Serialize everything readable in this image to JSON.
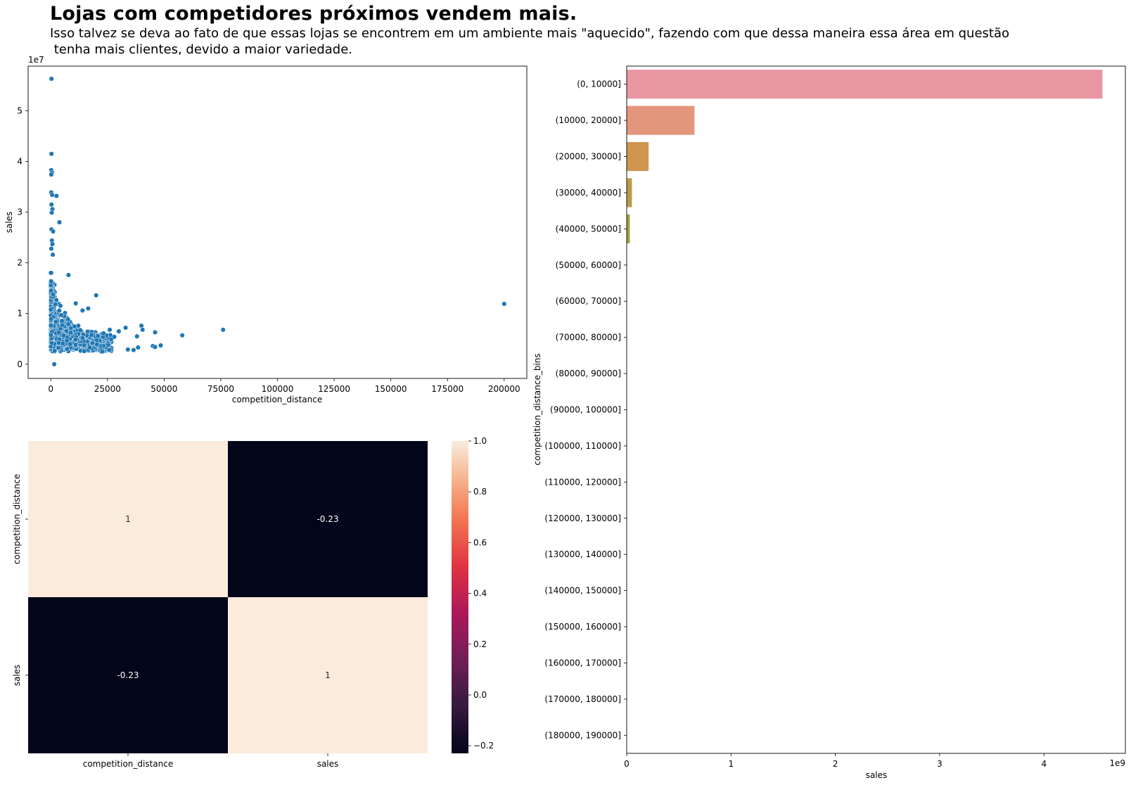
{
  "figure": {
    "title": "Lojas com competidores próximos vendem mais.",
    "subtitle": "Isso talvez se deva ao fato de que essas lojas se encontrem em um ambiente mais \"aquecido\", fazendo com que dessa maneira essa área em questão\n tenha mais clientes, devido a maior variedade."
  },
  "colors": {
    "scatter_point": "#1f77b4",
    "bar_palette": [
      "#ea96a3",
      "#e4967d",
      "#d0954e",
      "#b89c4a",
      "#a0a23e"
    ]
  },
  "chart_data": [
    {
      "id": "scatter",
      "type": "scatter",
      "xlabel": "competition_distance",
      "ylabel": "sales",
      "y_offset_label": "1e7",
      "xlim": [
        -10000,
        210000
      ],
      "ylim": [
        -2800000,
        58800000
      ],
      "xticks": [
        0,
        25000,
        50000,
        75000,
        100000,
        125000,
        150000,
        175000,
        200000
      ],
      "xtick_labels": [
        "0",
        "25000",
        "50000",
        "75000",
        "100000",
        "125000",
        "150000",
        "175000",
        "200000"
      ],
      "yticks": [
        0,
        10000000,
        20000000,
        30000000,
        40000000,
        50000000
      ],
      "ytick_labels": [
        "0",
        "1",
        "2",
        "3",
        "4",
        "5"
      ],
      "outliers": [
        {
          "x": 300,
          "y": 56300000
        },
        {
          "x": 300,
          "y": 41500000
        },
        {
          "x": 200,
          "y": 38300000
        },
        {
          "x": 500,
          "y": 37800000
        },
        {
          "x": 200,
          "y": 37400000
        },
        {
          "x": 200,
          "y": 33900000
        },
        {
          "x": 600,
          "y": 33400000
        },
        {
          "x": 2500,
          "y": 33200000
        },
        {
          "x": 300,
          "y": 31500000
        },
        {
          "x": 700,
          "y": 30600000
        },
        {
          "x": 400,
          "y": 29900000
        },
        {
          "x": 3800,
          "y": 28000000
        },
        {
          "x": 300,
          "y": 26600000
        },
        {
          "x": 1000,
          "y": 26200000
        },
        {
          "x": 500,
          "y": 24400000
        },
        {
          "x": 700,
          "y": 23700000
        },
        {
          "x": 200,
          "y": 22800000
        },
        {
          "x": 900,
          "y": 21600000
        },
        {
          "x": 7800,
          "y": 17600000
        },
        {
          "x": 20000,
          "y": 13600000
        },
        {
          "x": 1000,
          "y": 13800000
        },
        {
          "x": 11000,
          "y": 12000000
        },
        {
          "x": 16500,
          "y": 11000000
        },
        {
          "x": 14000,
          "y": 10600000
        },
        {
          "x": 1500,
          "y": 0
        },
        {
          "x": 40000,
          "y": 7600000
        },
        {
          "x": 40500,
          "y": 6800000
        },
        {
          "x": 38000,
          "y": 5500000
        },
        {
          "x": 33000,
          "y": 7200000
        },
        {
          "x": 30000,
          "y": 6500000
        },
        {
          "x": 46000,
          "y": 6300000
        },
        {
          "x": 45000,
          "y": 3600000
        },
        {
          "x": 46000,
          "y": 3400000
        },
        {
          "x": 48500,
          "y": 3700000
        },
        {
          "x": 34000,
          "y": 2900000
        },
        {
          "x": 36500,
          "y": 2800000
        },
        {
          "x": 38500,
          "y": 3300000
        },
        {
          "x": 28000,
          "y": 5400000
        },
        {
          "x": 26000,
          "y": 6800000
        },
        {
          "x": 58000,
          "y": 5700000
        },
        {
          "x": 76000,
          "y": 6800000
        },
        {
          "x": 200000,
          "y": 11900000
        }
      ]
    },
    {
      "id": "heatmap",
      "type": "heatmap",
      "row_labels": [
        "competition_distance",
        "sales"
      ],
      "col_labels": [
        "competition_distance",
        "sales"
      ],
      "values": [
        [
          1,
          -0.23
        ],
        [
          -0.23,
          1
        ]
      ],
      "annotations": [
        [
          "1",
          "-0.23"
        ],
        [
          "-0.23",
          "1"
        ]
      ],
      "colorbar_range": [
        -0.23,
        1.0
      ],
      "colorbar_ticks": [
        -0.2,
        0.0,
        0.2,
        0.4,
        0.6,
        0.8,
        1.0
      ],
      "colorbar_tick_labels": [
        "−0.2",
        "0.0",
        "0.2",
        "0.4",
        "0.6",
        "0.8",
        "1.0"
      ],
      "colormap": "rocket"
    },
    {
      "id": "barh",
      "type": "bar",
      "orientation": "horizontal",
      "xlabel": "sales",
      "ylabel": "competition_distance_bins",
      "x_offset_label": "1e9",
      "xlim": [
        0,
        4780000000
      ],
      "xticks": [
        0,
        1000000000,
        2000000000,
        3000000000,
        4000000000
      ],
      "xtick_labels": [
        "0",
        "1",
        "2",
        "3",
        "4"
      ],
      "categories": [
        "(0, 10000]",
        "(10000, 20000]",
        "(20000, 30000]",
        "(30000, 40000]",
        "(40000, 50000]",
        "(50000, 60000]",
        "(60000, 70000]",
        "(70000, 80000]",
        "(80000, 90000]",
        "(90000, 100000]",
        "(100000, 110000]",
        "(110000, 120000]",
        "(120000, 130000]",
        "(130000, 140000]",
        "(140000, 150000]",
        "(150000, 160000]",
        "(160000, 170000]",
        "(170000, 180000]",
        "(180000, 190000]"
      ],
      "values": [
        4560000000,
        650000000,
        210000000,
        50000000,
        30000000,
        0,
        0,
        0,
        0,
        0,
        0,
        0,
        0,
        0,
        0,
        0,
        0,
        0,
        0
      ]
    }
  ]
}
